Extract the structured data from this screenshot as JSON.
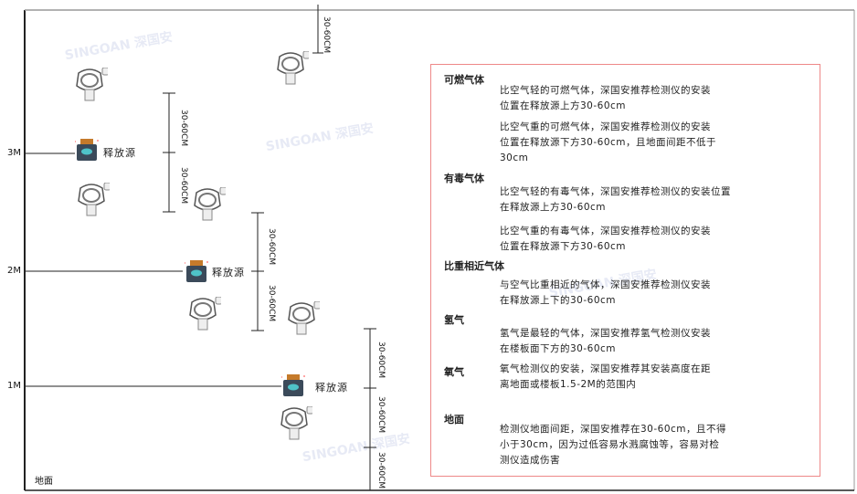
{
  "heights": {
    "h3": "3M",
    "h2": "2M",
    "h1": "1M",
    "ground": "地面"
  },
  "source_label": "释放源",
  "dimension_label": "30-60CM",
  "watermark": "SINGOAN 深国安",
  "panel": {
    "flammable": {
      "title": "可燃气体",
      "light": [
        "比空气轻的可燃气体，深国安推荐检测仪的安装",
        "位置在释放源上方30-60cm"
      ],
      "heavy": [
        "比空气重的可燃气体，深国安推荐检测仪的安装",
        "位置在释放源下方30-60cm，且地面间距不低于",
        "30cm"
      ]
    },
    "toxic": {
      "title": "有毒气体",
      "light": [
        "比空气轻的有毒气体，深国安推荐检测仪的安装位置",
        "在释放源上方30-60cm"
      ],
      "heavy": [
        "比空气重的有毒气体，深国安推荐检测仪的安装",
        "位置在释放源下方30-60cm"
      ]
    },
    "similar": {
      "title": "比重相近气体",
      "text": [
        "与空气比重相近的气体，深国安推荐检测仪安装",
        "在释放源上下的30-60cm"
      ]
    },
    "hydrogen": {
      "title": "氢气",
      "text": [
        "氢气是最轻的气体，深国安推荐氢气检测仪安装",
        "在楼板面下方的30-60cm"
      ]
    },
    "oxygen": {
      "title": "氧气",
      "text": [
        "氧气检测仪的安装，深国安推荐其安装高度在距",
        "离地面或楼板1.5-2M的范围内"
      ]
    },
    "ground": {
      "title": "地面",
      "text": [
        "检测仪地面间距，深国安推荐在30-60cm，且不得",
        "小于30cm，因为过低容易水溅腐蚀等，容易对检",
        "测仪造成伤害"
      ]
    }
  },
  "colors": {
    "border": "#e88888",
    "source_body": "#3b4a5a",
    "source_top": "#c57a2b",
    "source_icon": "#4fc3c8"
  }
}
